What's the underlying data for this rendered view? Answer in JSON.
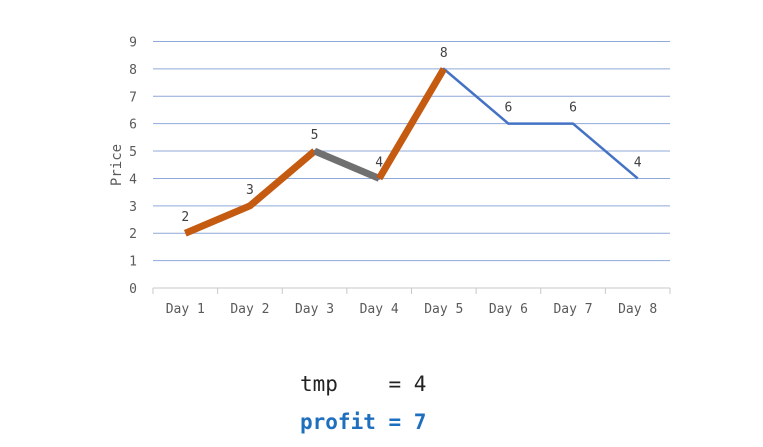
{
  "chart_data": {
    "type": "line",
    "categories": [
      "Day 1",
      "Day 2",
      "Day 3",
      "Day 4",
      "Day 5",
      "Day 6",
      "Day 7",
      "Day 8"
    ],
    "series": [
      {
        "values": [
          2,
          3,
          5,
          4,
          8,
          6,
          6,
          4
        ],
        "color": "#4472c4"
      }
    ],
    "highlighted_segments": [
      {
        "from": "Day 1",
        "to": "Day 3",
        "color": "#c55a11"
      },
      {
        "from": "Day 3",
        "to": "Day 4",
        "color": "#707070"
      },
      {
        "from": "Day 4",
        "to": "Day 5",
        "color": "#c55a11"
      }
    ],
    "data_labels": [
      "2",
      "3",
      "5",
      "4",
      "8",
      "6",
      "6",
      "4"
    ],
    "yticks": [
      "0",
      "1",
      "2",
      "3",
      "4",
      "5",
      "6",
      "7",
      "8",
      "9"
    ],
    "ylim": [
      0,
      9
    ],
    "ylabel": "Price",
    "xlabel": "",
    "title": "",
    "grid": true,
    "gridColor": "#8fa9d9"
  },
  "stats": {
    "tmp_text": "tmp    = 4",
    "profit_text": "profit = 7",
    "profit_color": "#1f6fbf"
  }
}
